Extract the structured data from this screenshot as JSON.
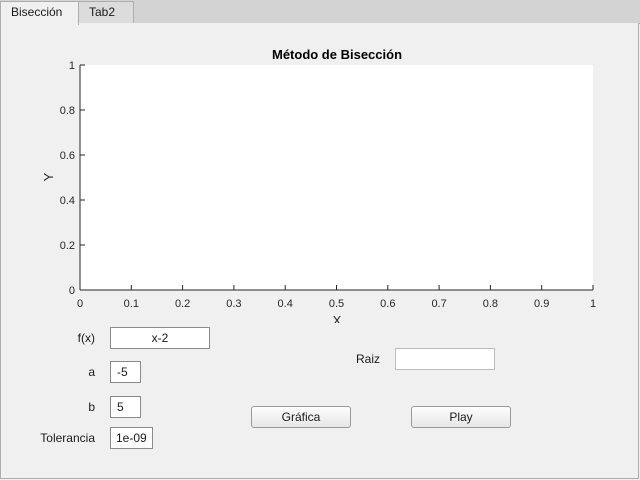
{
  "tabs": [
    {
      "label": "Bisección",
      "active": true
    },
    {
      "label": "Tab2",
      "active": false
    }
  ],
  "chart_data": {
    "type": "line",
    "title": "Método de Bisección",
    "xlabel": "X",
    "ylabel": "Y",
    "xlim": [
      0,
      1
    ],
    "ylim": [
      0,
      1
    ],
    "x_ticks": [
      "0",
      "0.1",
      "0.2",
      "0.3",
      "0.4",
      "0.5",
      "0.6",
      "0.7",
      "0.8",
      "0.9",
      "1"
    ],
    "y_ticks": [
      "0",
      "0.2",
      "0.4",
      "0.6",
      "0.8",
      "1"
    ],
    "series": [],
    "grid": false
  },
  "form": {
    "fx_label": "f(x)",
    "fx_value": "x-2",
    "a_label": "a",
    "a_value": "-5",
    "b_label": "b",
    "b_value": "5",
    "tol_label": "Tolerancia",
    "tol_value": "1e-09",
    "raiz_label": "Raiz",
    "raiz_value": ""
  },
  "buttons": {
    "grafica": "Gráfica",
    "play": "Play"
  }
}
